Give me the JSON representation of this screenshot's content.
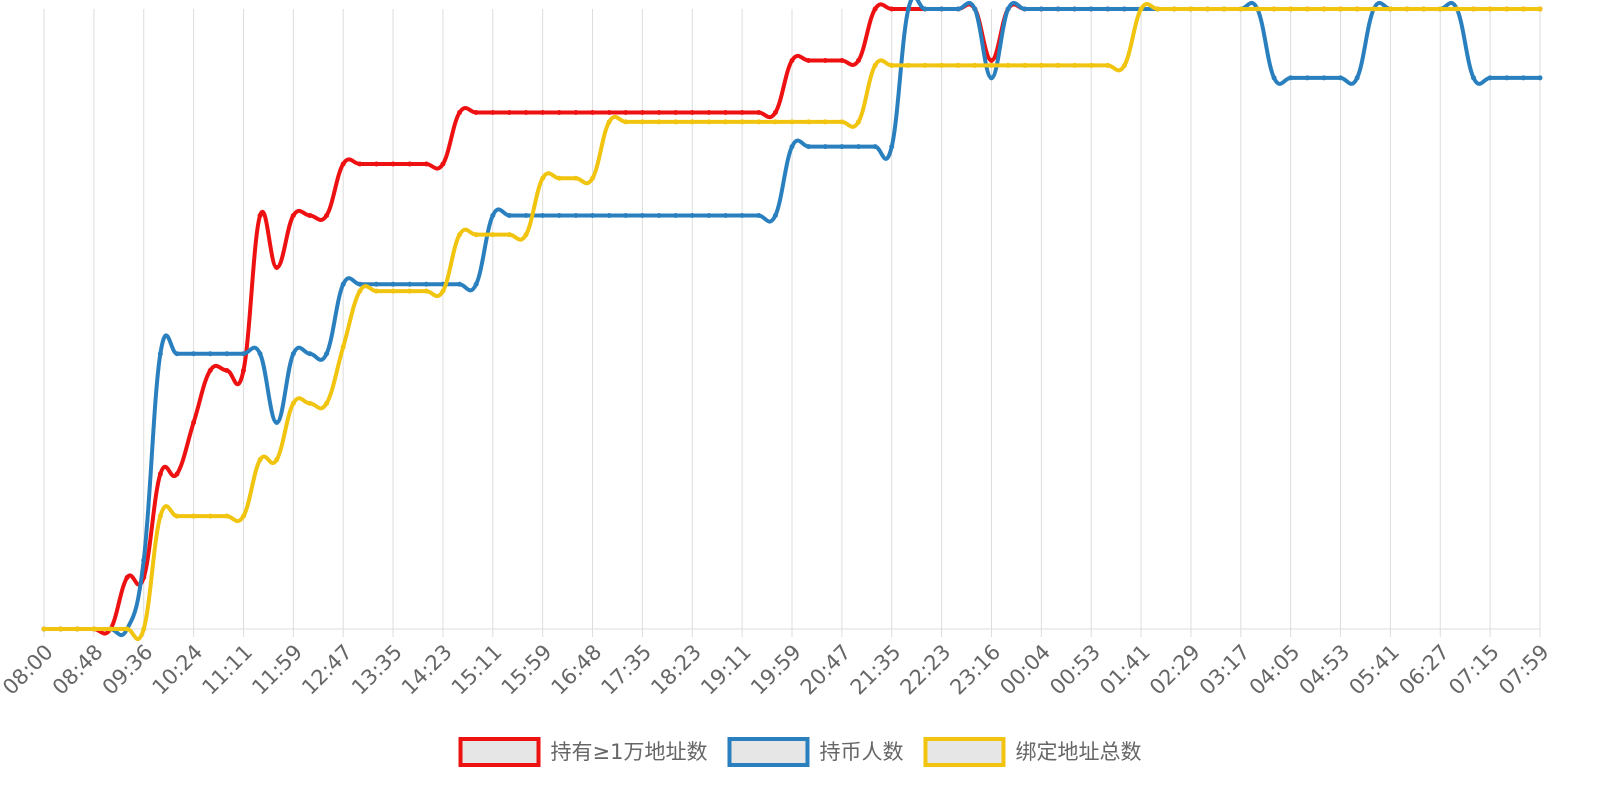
{
  "chart_data": {
    "type": "line",
    "categories": [
      "08:00",
      null,
      null,
      "08:48",
      null,
      null,
      "09:36",
      null,
      null,
      "10:24",
      null,
      null,
      "11:11",
      null,
      null,
      "11:59",
      null,
      null,
      "12:47",
      null,
      null,
      "13:35",
      null,
      null,
      "14:23",
      null,
      null,
      "15:11",
      null,
      null,
      "15:59",
      null,
      null,
      "16:48",
      null,
      null,
      "17:35",
      null,
      null,
      "18:23",
      null,
      null,
      "19:11",
      null,
      null,
      "19:59",
      null,
      null,
      "20:47",
      null,
      null,
      "21:35",
      null,
      null,
      "22:23",
      null,
      null,
      "23:16",
      null,
      null,
      "00:04",
      null,
      null,
      "00:53",
      null,
      null,
      "01:41",
      null,
      null,
      "02:29",
      null,
      null,
      "03:17",
      null,
      null,
      "04:05",
      null,
      null,
      "04:53",
      null,
      null,
      "05:41",
      null,
      null,
      "06:27",
      null,
      null,
      "07:15",
      null,
      null,
      "07:59"
    ],
    "series": [
      {
        "name": "持有≥1万地址数",
        "color": "#ee1111",
        "values": [
          0,
          0,
          0,
          0,
          0,
          8.3,
          8.3,
          25,
          25,
          33.3,
          41.7,
          41.7,
          41.7,
          66.7,
          58.3,
          66.7,
          66.7,
          66.7,
          75,
          75,
          75,
          75,
          75,
          75,
          75,
          83.3,
          83.3,
          83.3,
          83.3,
          83.3,
          83.3,
          83.3,
          83.3,
          83.3,
          83.3,
          83.3,
          83.3,
          83.3,
          83.3,
          83.3,
          83.3,
          83.3,
          83.3,
          83.3,
          83.3,
          91.7,
          91.7,
          91.7,
          91.7,
          91.7,
          100,
          100,
          100,
          100,
          100,
          100,
          100,
          91.7,
          100,
          100,
          100,
          100,
          100,
          100,
          100,
          100,
          100,
          100,
          100,
          100,
          100,
          100,
          100,
          100,
          100,
          100,
          100,
          100,
          100,
          100,
          100,
          100,
          100,
          100,
          100,
          100,
          100,
          100,
          100,
          100,
          100
        ]
      },
      {
        "name": "持币人数",
        "color": "#2a80bf",
        "values": [
          0,
          0,
          0,
          0,
          0,
          0,
          11.1,
          44.4,
          44.4,
          44.4,
          44.4,
          44.4,
          44.4,
          44.4,
          33.3,
          44.4,
          44.4,
          44.4,
          55.6,
          55.6,
          55.6,
          55.6,
          55.6,
          55.6,
          55.6,
          55.6,
          55.6,
          66.7,
          66.7,
          66.7,
          66.7,
          66.7,
          66.7,
          66.7,
          66.7,
          66.7,
          66.7,
          66.7,
          66.7,
          66.7,
          66.7,
          66.7,
          66.7,
          66.7,
          66.7,
          77.8,
          77.8,
          77.8,
          77.8,
          77.8,
          77.8,
          77.8,
          100,
          100,
          100,
          100,
          100,
          88.9,
          100,
          100,
          100,
          100,
          100,
          100,
          100,
          100,
          100,
          100,
          100,
          100,
          100,
          100,
          100,
          100,
          88.9,
          88.9,
          88.9,
          88.9,
          88.9,
          88.9,
          100,
          100,
          100,
          100,
          100,
          100,
          88.9,
          88.9,
          88.9,
          88.9,
          88.9
        ]
      },
      {
        "name": "绑定地址总数",
        "color": "#f1c40f",
        "values": [
          0,
          0,
          0,
          0,
          0,
          0,
          0,
          18.2,
          18.2,
          18.2,
          18.2,
          18.2,
          18.2,
          27.3,
          27.3,
          36.4,
          36.4,
          36.4,
          45.5,
          54.5,
          54.5,
          54.5,
          54.5,
          54.5,
          54.5,
          63.6,
          63.6,
          63.6,
          63.6,
          63.6,
          72.7,
          72.7,
          72.7,
          72.7,
          81.8,
          81.8,
          81.8,
          81.8,
          81.8,
          81.8,
          81.8,
          81.8,
          81.8,
          81.8,
          81.8,
          81.8,
          81.8,
          81.8,
          81.8,
          81.8,
          90.9,
          90.9,
          90.9,
          90.9,
          90.9,
          90.9,
          90.9,
          90.9,
          90.9,
          90.9,
          90.9,
          90.9,
          90.9,
          90.9,
          90.9,
          90.9,
          100,
          100,
          100,
          100,
          100,
          100,
          100,
          100,
          100,
          100,
          100,
          100,
          100,
          100,
          100,
          100,
          100,
          100,
          100,
          100,
          100,
          100,
          100,
          100,
          100
        ]
      }
    ],
    "ylim": [
      0,
      100
    ],
    "grid": true,
    "legend": "bottom"
  }
}
